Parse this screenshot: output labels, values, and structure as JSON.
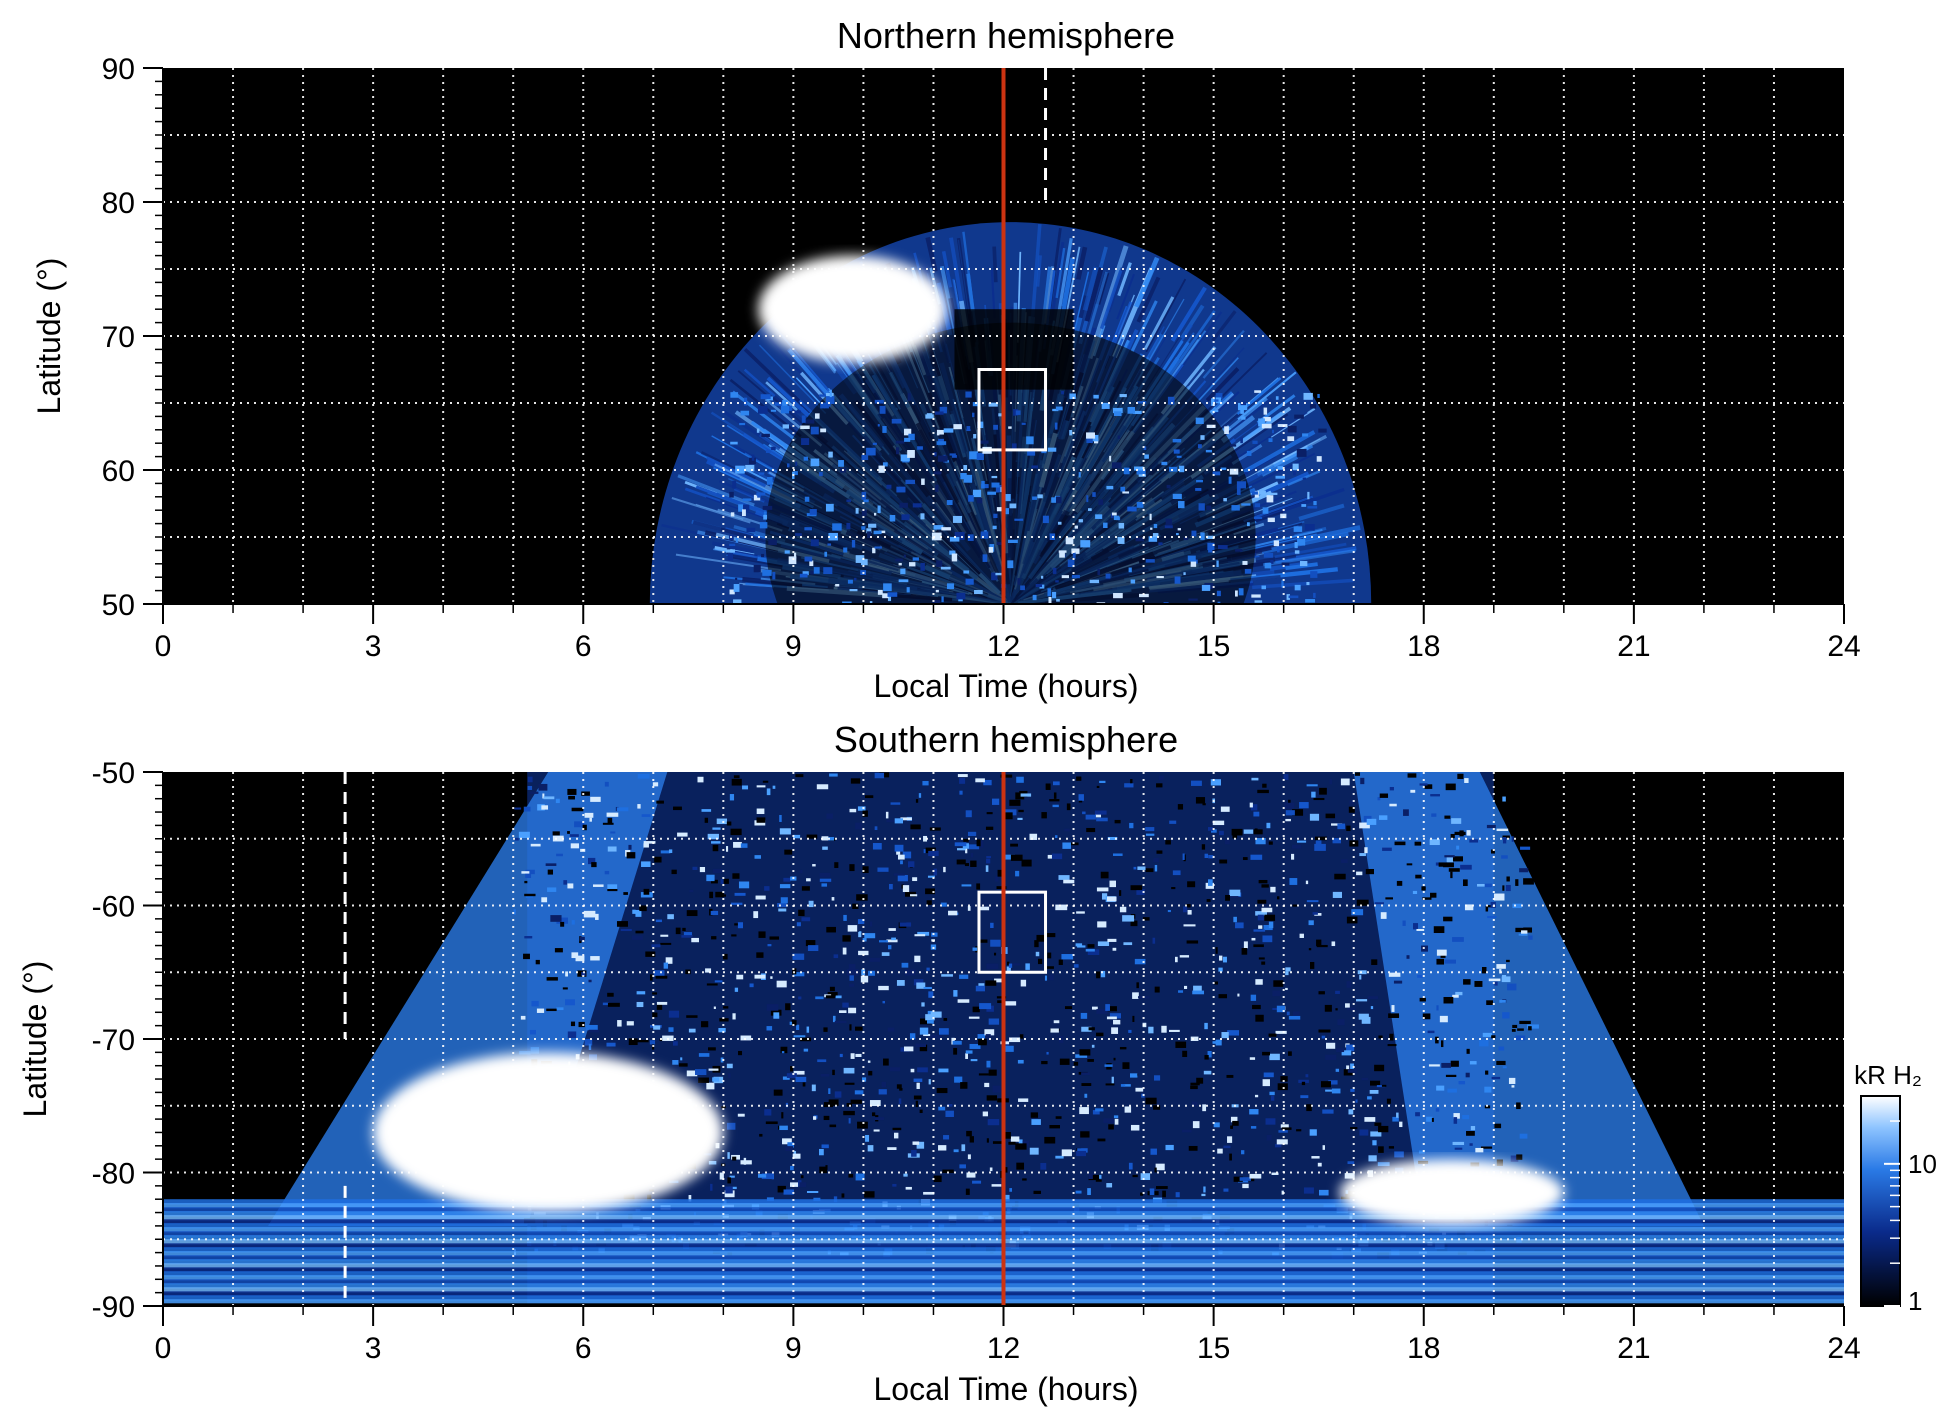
{
  "chart_data": [
    {
      "type": "heatmap",
      "title": "Northern hemisphere",
      "xlabel": "Local Time (hours)",
      "ylabel": "Latitude (°)",
      "xlim": [
        0,
        24
      ],
      "ylim": [
        50,
        90
      ],
      "xticks": [
        "0",
        "3",
        "6",
        "9",
        "12",
        "15",
        "18",
        "21",
        "24"
      ],
      "yticks": [
        "90",
        "80",
        "70",
        "60",
        "50"
      ],
      "grid": true,
      "local_noon_line": 12,
      "dashed_line_lt": 12.6,
      "box": {
        "lt": [
          11.65,
          12.6
        ],
        "lat": [
          61.5,
          67.5
        ]
      },
      "bright_region": {
        "lt": [
          8.5,
          11.2
        ],
        "lat": [
          68,
          76
        ]
      },
      "coverage": {
        "lt": [
          7,
          17.3
        ],
        "lat_max": 80
      }
    },
    {
      "type": "heatmap",
      "title": "Southern hemisphere",
      "xlabel": "Local Time (hours)",
      "ylabel": "Latitude (°)",
      "xlim": [
        0,
        24
      ],
      "ylim": [
        -90,
        -50
      ],
      "xticks": [
        "0",
        "3",
        "6",
        "9",
        "12",
        "15",
        "18",
        "21",
        "24"
      ],
      "yticks": [
        "-50",
        "-60",
        "-70",
        "-80",
        "-90"
      ],
      "grid": true,
      "local_noon_line": 12,
      "dashed_line_lt": 2.6,
      "box": {
        "lt": [
          11.65,
          12.6
        ],
        "lat": [
          -65,
          -59
        ]
      },
      "bright_regions": [
        {
          "lt": [
            3.0,
            8.0
          ],
          "lat": [
            -83,
            -71
          ]
        },
        {
          "lt": [
            16.8,
            20.0
          ],
          "lat": [
            -84,
            -79
          ]
        }
      ]
    }
  ],
  "colorbar": {
    "label": "kR H₂",
    "ticks": [
      "10",
      "1"
    ],
    "tick_values": [
      10,
      1
    ],
    "range": [
      1,
      30
    ],
    "scale": "log"
  },
  "colors": {
    "background": "#000000",
    "noon_line": "#cc3311",
    "grid": "#ffffff",
    "low": "#000000",
    "mid": "#1e5fd0",
    "high": "#ffffff"
  }
}
